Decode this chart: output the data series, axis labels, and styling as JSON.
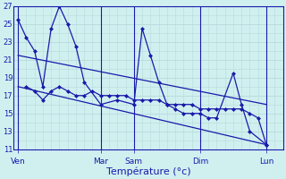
{
  "background_color": "#d0f0f0",
  "grid_color": "#b8dada",
  "line_color": "#1a1aaa",
  "xlabel": "Température (°c)",
  "ylim": [
    11,
    27
  ],
  "yticks": [
    11,
    13,
    15,
    17,
    19,
    21,
    23,
    25,
    27
  ],
  "x_day_labels": [
    {
      "label": "Ven",
      "x": 0
    },
    {
      "label": "Mar",
      "x": 10
    },
    {
      "label": "Sam",
      "x": 14
    },
    {
      "label": "Dim",
      "x": 22
    },
    {
      "label": "Lun",
      "x": 30
    }
  ],
  "xlim": [
    -0.5,
    32
  ],
  "series1_x": [
    0,
    1,
    2,
    3,
    4,
    5,
    6,
    7,
    8,
    10,
    12,
    14,
    15,
    16,
    17,
    18,
    19,
    20,
    21,
    22,
    23,
    24,
    26,
    27,
    28,
    30
  ],
  "series1_y": [
    25.5,
    23.5,
    22.0,
    18.0,
    24.5,
    27.0,
    25.0,
    22.5,
    18.5,
    16.0,
    16.5,
    16.0,
    24.5,
    21.5,
    18.5,
    16.0,
    15.5,
    15.0,
    15.0,
    15.0,
    14.5,
    14.5,
    19.5,
    16.0,
    13.0,
    11.5
  ],
  "series2_x": [
    1,
    2,
    3,
    4,
    5,
    6,
    7,
    8,
    9,
    10,
    11,
    12,
    13,
    14,
    15,
    16,
    17,
    18,
    19,
    20,
    21,
    22,
    23,
    24,
    25,
    26,
    27,
    28,
    29,
    30
  ],
  "series2_y": [
    18.0,
    17.5,
    16.5,
    17.5,
    18.0,
    17.5,
    17.0,
    17.0,
    17.5,
    17.0,
    17.0,
    17.0,
    17.0,
    16.5,
    16.5,
    16.5,
    16.5,
    16.0,
    16.0,
    16.0,
    16.0,
    15.5,
    15.5,
    15.5,
    15.5,
    15.5,
    15.5,
    15.0,
    14.5,
    11.5
  ],
  "trend1_x": [
    0,
    30
  ],
  "trend1_y": [
    21.5,
    16.0
  ],
  "trend2_x": [
    0,
    30
  ],
  "trend2_y": [
    18.0,
    11.5
  ]
}
